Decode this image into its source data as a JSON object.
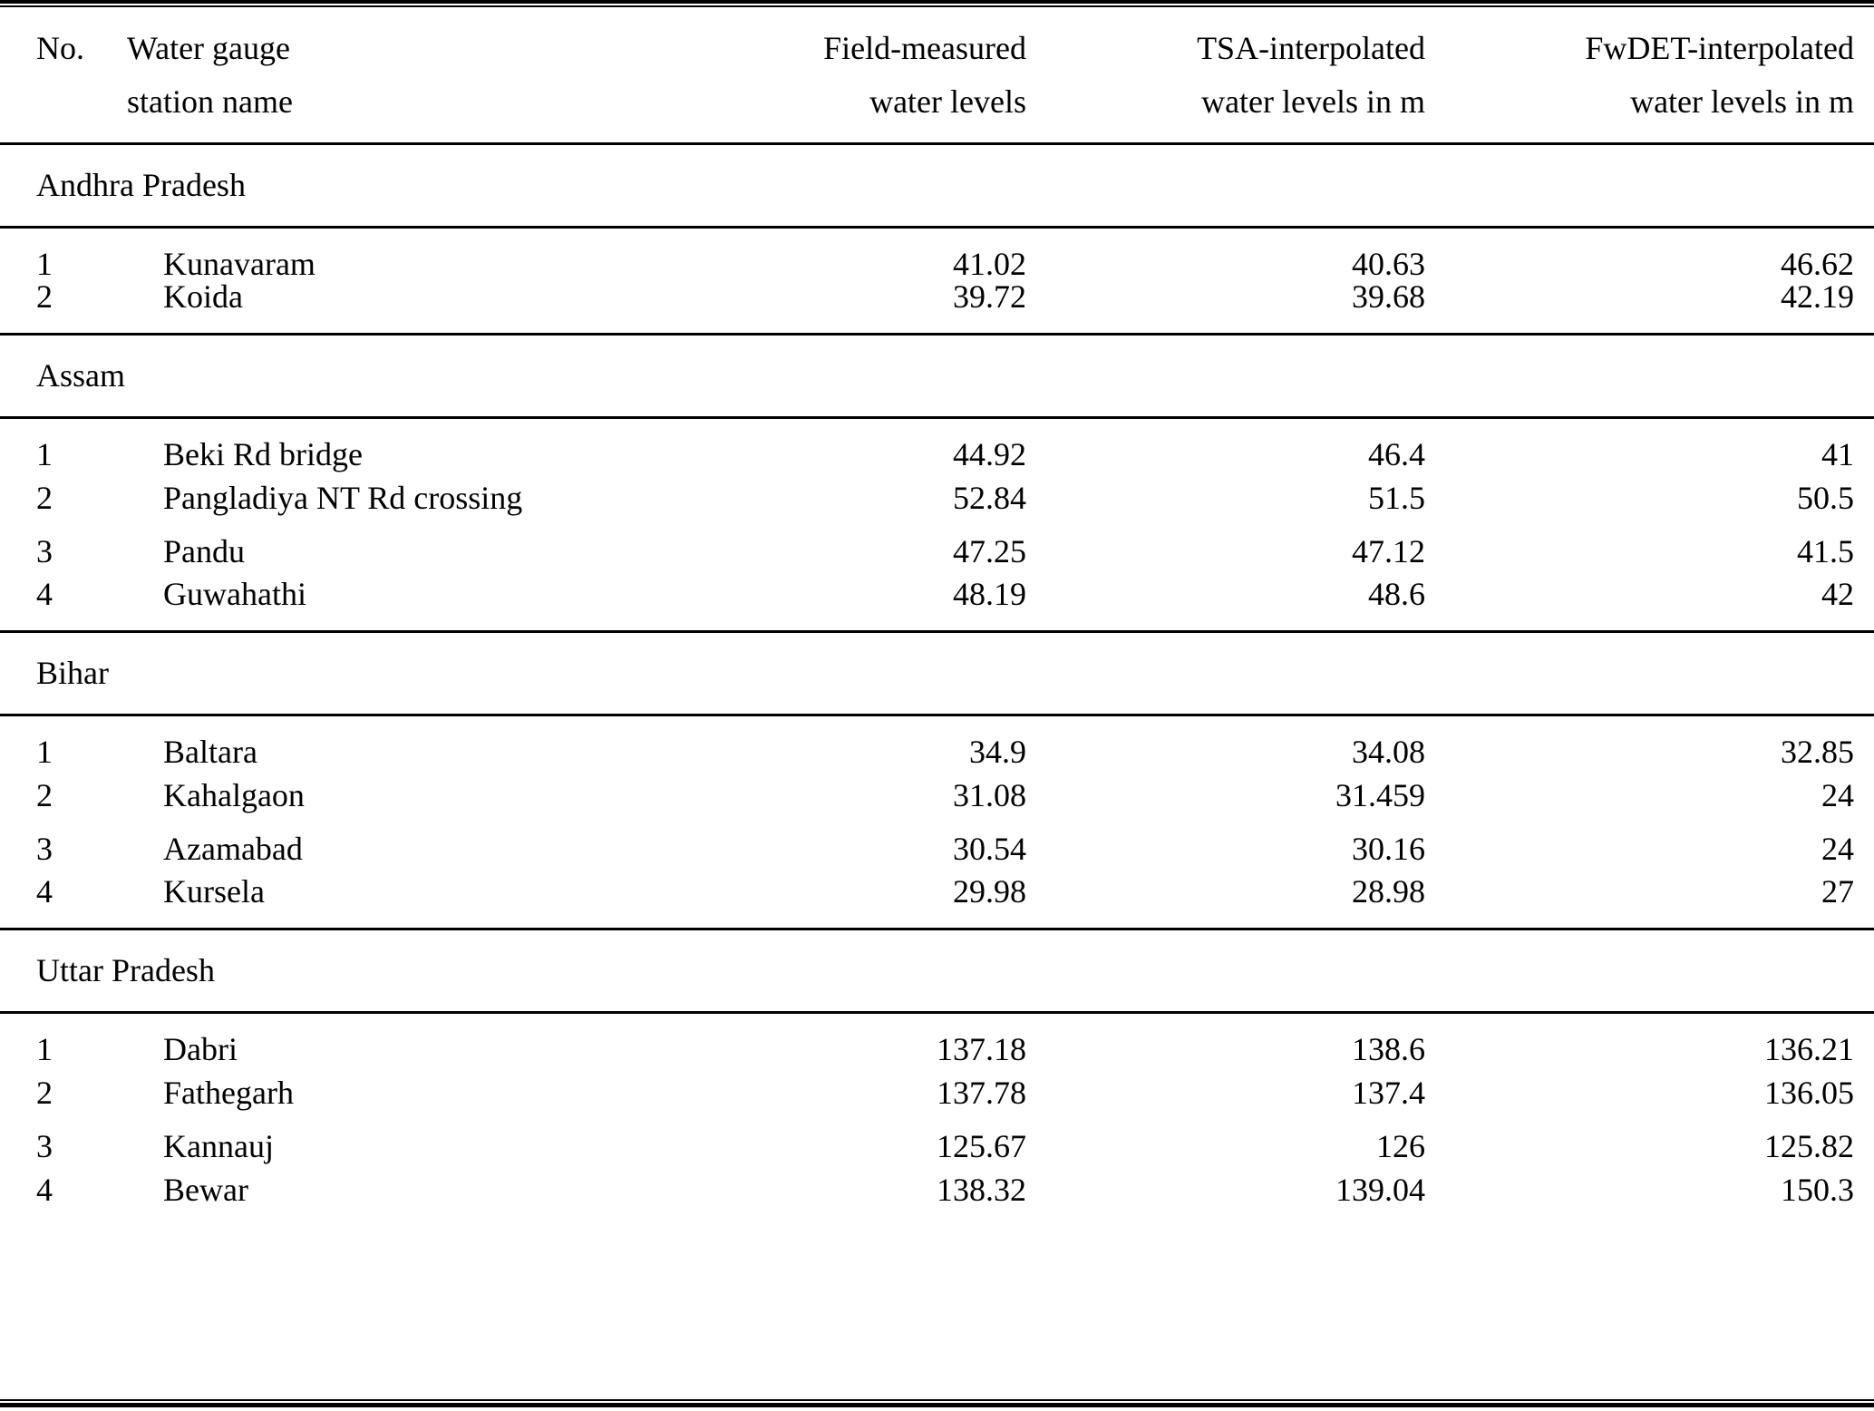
{
  "colors": {
    "background": "#ffffff",
    "text": "#000000",
    "rule": "#000000"
  },
  "table": {
    "headers": [
      {
        "line1": "No.",
        "line2": ""
      },
      {
        "line1": "Water gauge",
        "line2": "station name"
      },
      {
        "line1": "Field-measured",
        "line2": "water levels"
      },
      {
        "line1": "TSA-interpolated",
        "line2": "water levels in m"
      },
      {
        "line1": "FwDET-interpolated",
        "line2": "water levels in m"
      }
    ],
    "sections": [
      {
        "name": "Andhra Pradesh",
        "rows": [
          {
            "no": "1",
            "station": "Kunavaram",
            "field": "41.02",
            "tsa": "40.63",
            "fwdet": "46.62"
          },
          {
            "no": "2",
            "station": "Koida",
            "field": "39.72",
            "tsa": "39.68",
            "fwdet": "42.19"
          }
        ]
      },
      {
        "name": "Assam",
        "rows": [
          {
            "no": "1",
            "station": "Beki Rd bridge",
            "field": "44.92",
            "tsa": "46.4",
            "fwdet": "41"
          },
          {
            "no": "2",
            "station": "Pangladiya NT Rd crossing",
            "field": "52.84",
            "tsa": "51.5",
            "fwdet": "50.5"
          },
          {
            "no": "3",
            "station": "Pandu",
            "field": "47.25",
            "tsa": "47.12",
            "fwdet": "41.5"
          },
          {
            "no": "4",
            "station": "Guwahathi",
            "field": "48.19",
            "tsa": "48.6",
            "fwdet": "42"
          }
        ]
      },
      {
        "name": "Bihar",
        "rows": [
          {
            "no": "1",
            "station": "Baltara",
            "field": "34.9",
            "tsa": "34.08",
            "fwdet": "32.85"
          },
          {
            "no": "2",
            "station": "Kahalgaon",
            "field": "31.08",
            "tsa": "31.459",
            "fwdet": "24"
          },
          {
            "no": "3",
            "station": "Azamabad",
            "field": "30.54",
            "tsa": "30.16",
            "fwdet": "24"
          },
          {
            "no": "4",
            "station": "Kursela",
            "field": "29.98",
            "tsa": "28.98",
            "fwdet": "27"
          }
        ]
      },
      {
        "name": "Uttar Pradesh",
        "rows": [
          {
            "no": "1",
            "station": "Dabri",
            "field": "137.18",
            "tsa": "138.6",
            "fwdet": "136.21"
          },
          {
            "no": "2",
            "station": "Fathegarh",
            "field": "137.78",
            "tsa": "137.4",
            "fwdet": "136.05"
          },
          {
            "no": "3",
            "station": "Kannauj",
            "field": "125.67",
            "tsa": "126",
            "fwdet": "125.82"
          },
          {
            "no": "4",
            "station": "Bewar",
            "field": "138.32",
            "tsa": "139.04",
            "fwdet": "150.3"
          }
        ]
      }
    ]
  }
}
